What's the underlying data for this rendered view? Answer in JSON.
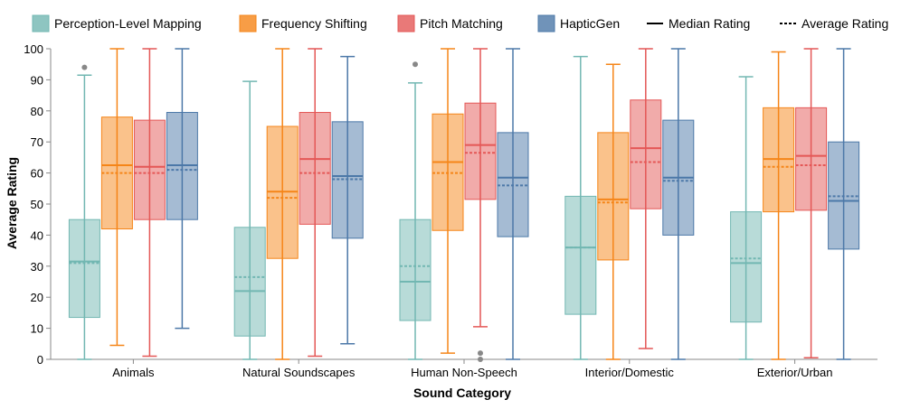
{
  "chart_data": {
    "type": "boxplot",
    "title": "",
    "xlabel": "Sound Category",
    "ylabel": "Average Rating",
    "ylim": [
      0,
      100
    ],
    "yticks": [
      0,
      10,
      20,
      30,
      40,
      50,
      60,
      70,
      80,
      90,
      100
    ],
    "grid": false,
    "legend_position": "top",
    "categories": [
      "Animals",
      "Natural Soundscapes",
      "Human Non-Speech",
      "Interior/Domestic",
      "Exterior/Urban"
    ],
    "legend_extra": [
      {
        "label": "Median Rating",
        "style": "solid"
      },
      {
        "label": "Average Rating",
        "style": "dashed"
      }
    ],
    "series": [
      {
        "name": "Perception-Level Mapping",
        "color": "#72b7b2",
        "boxes": [
          {
            "whisker_low": 0,
            "q1": 13.5,
            "median": 31.5,
            "mean": 31.0,
            "q3": 45,
            "whisker_high": 91.5,
            "outliers": [
              94
            ]
          },
          {
            "whisker_low": 0,
            "q1": 7.5,
            "median": 22,
            "mean": 26.5,
            "q3": 42.5,
            "whisker_high": 89.5,
            "outliers": []
          },
          {
            "whisker_low": 0,
            "q1": 12.5,
            "median": 25,
            "mean": 30,
            "q3": 45,
            "whisker_high": 89,
            "outliers": [
              95
            ]
          },
          {
            "whisker_low": 0,
            "q1": 14.5,
            "median": 36,
            "mean": 36,
            "q3": 52.5,
            "whisker_high": 97.5,
            "outliers": []
          },
          {
            "whisker_low": 0,
            "q1": 12,
            "median": 31,
            "mean": 32.5,
            "q3": 47.5,
            "whisker_high": 91,
            "outliers": []
          }
        ]
      },
      {
        "name": "Frequency Shifting",
        "color": "#f58518",
        "boxes": [
          {
            "whisker_low": 4.5,
            "q1": 42,
            "median": 62.5,
            "mean": 60,
            "q3": 78,
            "whisker_high": 100,
            "outliers": []
          },
          {
            "whisker_low": 0,
            "q1": 32.5,
            "median": 54,
            "mean": 52,
            "q3": 75,
            "whisker_high": 100,
            "outliers": []
          },
          {
            "whisker_low": 2,
            "q1": 41.5,
            "median": 63.5,
            "mean": 60,
            "q3": 79,
            "whisker_high": 100,
            "outliers": []
          },
          {
            "whisker_low": 0,
            "q1": 32,
            "median": 51.5,
            "mean": 50.5,
            "q3": 73,
            "whisker_high": 95,
            "outliers": []
          },
          {
            "whisker_low": 0,
            "q1": 47.5,
            "median": 64.5,
            "mean": 62,
            "q3": 81,
            "whisker_high": 99,
            "outliers": []
          }
        ]
      },
      {
        "name": "Pitch Matching",
        "color": "#e45756",
        "boxes": [
          {
            "whisker_low": 1,
            "q1": 45,
            "median": 62,
            "mean": 60,
            "q3": 77,
            "whisker_high": 100,
            "outliers": []
          },
          {
            "whisker_low": 1,
            "q1": 43.5,
            "median": 64.5,
            "mean": 60,
            "q3": 79.5,
            "whisker_high": 100,
            "outliers": []
          },
          {
            "whisker_low": 10.5,
            "q1": 51.5,
            "median": 69,
            "mean": 66.5,
            "q3": 82.5,
            "whisker_high": 100,
            "outliers": [
              2,
              0
            ]
          },
          {
            "whisker_low": 3.5,
            "q1": 48.5,
            "median": 68,
            "mean": 63.5,
            "q3": 83.5,
            "whisker_high": 100,
            "outliers": []
          },
          {
            "whisker_low": 0.5,
            "q1": 48,
            "median": 65.5,
            "mean": 62.5,
            "q3": 81,
            "whisker_high": 100,
            "outliers": []
          }
        ]
      },
      {
        "name": "HapticGen",
        "color": "#4c78a8",
        "boxes": [
          {
            "whisker_low": 10,
            "q1": 45,
            "median": 62.5,
            "mean": 61,
            "q3": 79.5,
            "whisker_high": 100,
            "outliers": []
          },
          {
            "whisker_low": 5,
            "q1": 39,
            "median": 59,
            "mean": 58,
            "q3": 76.5,
            "whisker_high": 97.5,
            "outliers": []
          },
          {
            "whisker_low": 0,
            "q1": 39.5,
            "median": 58.5,
            "mean": 56,
            "q3": 73,
            "whisker_high": 100,
            "outliers": []
          },
          {
            "whisker_low": 0,
            "q1": 40,
            "median": 58.5,
            "mean": 57.5,
            "q3": 77,
            "whisker_high": 100,
            "outliers": []
          },
          {
            "whisker_low": 0,
            "q1": 35.5,
            "median": 51,
            "mean": 52.5,
            "q3": 70,
            "whisker_high": 100,
            "outliers": []
          }
        ]
      }
    ]
  }
}
